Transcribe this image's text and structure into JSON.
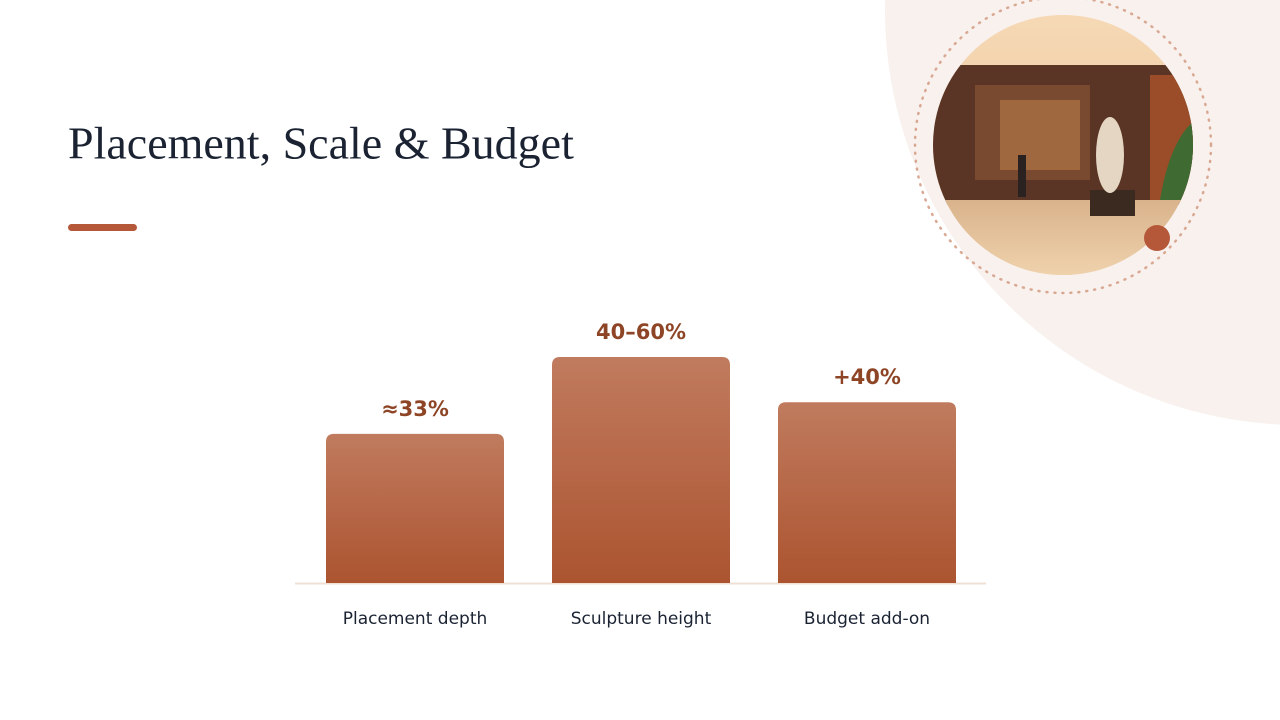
{
  "chart_data": {
    "type": "bar",
    "title": "Placement, Scale & Budget",
    "categories": [
      "Placement depth",
      "Sculpture height",
      "Budget add-on"
    ],
    "values": [
      33,
      50,
      40
    ],
    "value_labels": [
      "≈33%",
      "40–60%",
      "+40%"
    ],
    "color": "#b5603c"
  }
}
